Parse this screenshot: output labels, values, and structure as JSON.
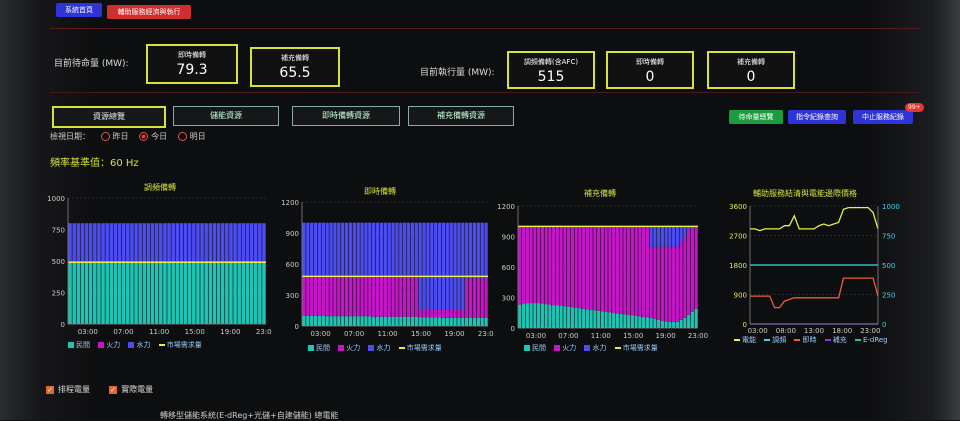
{
  "topbar": {
    "home_btn": "系統首頁",
    "exec_btn": "輔助服務經濟與執行"
  },
  "standby": {
    "label": "目前待命量 (MW):",
    "boxes": [
      {
        "label": "即時備轉",
        "value": "79.3"
      },
      {
        "label": "補充備轉",
        "value": "65.5"
      }
    ]
  },
  "executing": {
    "label": "目前執行量 (MW):",
    "boxes": [
      {
        "label": "調頻備轉(含AFC)",
        "value": "515"
      },
      {
        "label": "即時備轉",
        "value": "0"
      },
      {
        "label": "補充備轉",
        "value": "0"
      }
    ]
  },
  "tabs": [
    "資源總覽",
    "儲能資源",
    "即時備轉資源",
    "補充備轉資源"
  ],
  "actions": {
    "standby_view": "待命量總覽",
    "dispatch_query": "指令紀錄查詢",
    "stop_record": "中止服務紀錄",
    "badge": "99+"
  },
  "date_filter": {
    "label": "檢視日期：",
    "options": [
      "昨日",
      "今日",
      "明日"
    ],
    "selected": 1
  },
  "frequency": "頻率基準值：60 Hz",
  "colors": {
    "teal": "#1fc4b4",
    "magenta": "#c515c9",
    "blue": "#4c4cef",
    "yellow": "#e8ef4a",
    "orange": "#f05a3a",
    "cyan": "#3ad6f0",
    "purple": "#9a35e0"
  },
  "legend": {
    "civil": "民間",
    "thermal": "火力",
    "hydro": "水力",
    "demand": "市場需求量"
  },
  "chart_data": [
    {
      "type": "bar",
      "title": "調頻備轉",
      "xticks": [
        "03:00",
        "07:00",
        "11:00",
        "15:00",
        "19:00",
        "23:00"
      ],
      "yticks": [
        0,
        250,
        500,
        750,
        1000
      ],
      "ylim": [
        0,
        1000
      ],
      "series": [
        {
          "name": "民間",
          "values": [
            490,
            490,
            490,
            490,
            490,
            490,
            490,
            490,
            490,
            490,
            490,
            490,
            490,
            490,
            490,
            490,
            490,
            490,
            490,
            490,
            490,
            490,
            490,
            490,
            490,
            490,
            490,
            490,
            490,
            490,
            490,
            490,
            490,
            490,
            490,
            490,
            490,
            490,
            490,
            490,
            490,
            490,
            490,
            490,
            490,
            490,
            490,
            490
          ]
        },
        {
          "name": "火力",
          "values": [
            0,
            0,
            0,
            0,
            0,
            0,
            0,
            0,
            0,
            0,
            0,
            0,
            0,
            0,
            0,
            0,
            0,
            0,
            0,
            0,
            0,
            0,
            0,
            0,
            0,
            0,
            0,
            0,
            0,
            0,
            0,
            0,
            0,
            0,
            0,
            0,
            0,
            0,
            0,
            0,
            0,
            0,
            0,
            0,
            0,
            0,
            0,
            0
          ]
        },
        {
          "name": "水力",
          "values": [
            310,
            310,
            310,
            310,
            310,
            310,
            310,
            310,
            310,
            310,
            310,
            310,
            310,
            310,
            310,
            310,
            310,
            310,
            310,
            310,
            310,
            310,
            310,
            310,
            310,
            310,
            310,
            310,
            310,
            310,
            310,
            310,
            310,
            310,
            310,
            310,
            310,
            310,
            310,
            310,
            310,
            310,
            310,
            310,
            310,
            310,
            310,
            310
          ]
        }
      ],
      "demand": 490
    },
    {
      "type": "bar",
      "title": "即時備轉",
      "xticks": [
        "03:00",
        "07:00",
        "11:00",
        "15:00",
        "19:00",
        "23:00"
      ],
      "yticks": [
        0,
        300,
        600,
        900,
        1200
      ],
      "ylim": [
        0,
        1200
      ],
      "series": [
        {
          "name": "民間",
          "values": [
            100,
            100,
            100,
            100,
            100,
            100,
            95,
            95,
            95,
            95,
            95,
            95,
            95,
            95,
            95,
            95,
            95,
            95,
            90,
            90,
            90,
            90,
            90,
            90,
            90,
            90,
            90,
            90,
            90,
            90,
            85,
            85,
            85,
            85,
            85,
            85,
            80,
            80,
            80,
            80,
            80,
            80,
            80,
            80,
            80,
            80,
            80,
            80
          ]
        },
        {
          "name": "火力",
          "values": [
            380,
            380,
            380,
            380,
            380,
            380,
            385,
            385,
            385,
            385,
            385,
            385,
            385,
            385,
            385,
            385,
            385,
            385,
            390,
            390,
            390,
            390,
            390,
            390,
            390,
            390,
            390,
            390,
            390,
            390,
            80,
            80,
            80,
            80,
            80,
            80,
            80,
            80,
            80,
            80,
            80,
            80,
            380,
            380,
            380,
            380,
            380,
            380
          ]
        },
        {
          "name": "水力",
          "values": [
            520,
            520,
            520,
            520,
            520,
            520,
            520,
            520,
            520,
            520,
            520,
            520,
            520,
            520,
            520,
            520,
            520,
            520,
            520,
            520,
            520,
            520,
            520,
            520,
            520,
            520,
            520,
            520,
            520,
            520,
            835,
            835,
            835,
            835,
            835,
            835,
            840,
            840,
            840,
            840,
            840,
            840,
            540,
            540,
            540,
            540,
            540,
            540
          ]
        }
      ],
      "demand": 480
    },
    {
      "type": "bar",
      "title": "補充備轉",
      "xticks": [
        "03:00",
        "07:00",
        "11:00",
        "15:00",
        "19:00",
        "23:00"
      ],
      "yticks": [
        0,
        300,
        600,
        900,
        1200
      ],
      "ylim": [
        0,
        1200
      ],
      "series": [
        {
          "name": "民間",
          "values": [
            230,
            240,
            245,
            245,
            245,
            245,
            240,
            235,
            230,
            225,
            225,
            220,
            215,
            210,
            205,
            200,
            195,
            190,
            185,
            180,
            175,
            170,
            165,
            160,
            155,
            150,
            145,
            140,
            135,
            130,
            125,
            120,
            115,
            110,
            105,
            100,
            90,
            80,
            70,
            65,
            60,
            60,
            60,
            80,
            100,
            130,
            160,
            190
          ]
        },
        {
          "name": "火力",
          "values": [
            770,
            760,
            755,
            755,
            755,
            755,
            760,
            765,
            770,
            775,
            775,
            780,
            785,
            790,
            795,
            800,
            805,
            810,
            815,
            820,
            825,
            830,
            835,
            840,
            845,
            850,
            855,
            860,
            865,
            870,
            875,
            880,
            885,
            890,
            895,
            700,
            710,
            720,
            730,
            735,
            740,
            740,
            740,
            770,
            800,
            840,
            840,
            810
          ]
        },
        {
          "name": "水力",
          "values": [
            0,
            0,
            0,
            0,
            0,
            0,
            0,
            0,
            0,
            0,
            0,
            0,
            0,
            0,
            0,
            0,
            0,
            0,
            0,
            0,
            0,
            0,
            0,
            0,
            0,
            0,
            0,
            0,
            0,
            0,
            0,
            0,
            0,
            0,
            0,
            200,
            200,
            200,
            200,
            200,
            200,
            200,
            200,
            150,
            100,
            30,
            0,
            0
          ]
        }
      ],
      "demand": 1000
    },
    {
      "type": "line",
      "title": "輔助服務結清與電能邊際價格",
      "xticks": [
        "03:00",
        "08:00",
        "13:00",
        "18:00",
        "23:00"
      ],
      "yticks_left": [
        0,
        900,
        1800,
        2700,
        3600
      ],
      "yticks_right": [
        0,
        250,
        500,
        750,
        1000
      ],
      "ylim_left": [
        0,
        3600
      ],
      "ylim_right": [
        0,
        1000
      ],
      "series": [
        {
          "name": "電能",
          "axis": "left",
          "color": "#e8ef4a",
          "values": [
            2900,
            2900,
            2850,
            2900,
            2900,
            2900,
            2900,
            3000,
            3000,
            3300,
            2900,
            2900,
            2900,
            2900,
            3000,
            3050,
            3000,
            3050,
            3100,
            3500,
            3550,
            3550,
            3550,
            3550,
            3550,
            3400,
            2900
          ]
        },
        {
          "name": "調頻",
          "axis": "left",
          "color": "#3ad6f0",
          "values": [
            1800,
            1800,
            1800,
            1800,
            1800,
            1800,
            1800,
            1800,
            1800,
            1800,
            1800,
            1800,
            1800,
            1800,
            1800,
            1800,
            1800,
            1800,
            1800,
            1800,
            1800,
            1800,
            1800,
            1800,
            1800,
            1800,
            1800
          ]
        },
        {
          "name": "即時",
          "axis": "left",
          "color": "#f05a3a",
          "values": [
            850,
            850,
            850,
            850,
            850,
            500,
            500,
            700,
            750,
            800,
            800,
            800,
            800,
            800,
            800,
            800,
            800,
            800,
            800,
            1400,
            1400,
            1400,
            1400,
            1400,
            1400,
            1400,
            850
          ]
        },
        {
          "name": "補充",
          "axis": "left",
          "color": "#9a35e0",
          "values": [
            0,
            0,
            0,
            0,
            0,
            0,
            0,
            0,
            0,
            0,
            0,
            0,
            0,
            0,
            0,
            0,
            0,
            0,
            0,
            0,
            0,
            0,
            0,
            0,
            0,
            0,
            0
          ]
        }
      ],
      "legend_names": [
        "電能",
        "調頻",
        "即時",
        "補充",
        "E-dReg"
      ]
    }
  ],
  "checkboxes": [
    "排程電量",
    "實際電量"
  ],
  "bottom_title": "轉移型儲能系統(E-dReg+光儲+自建儲能) 總電能"
}
